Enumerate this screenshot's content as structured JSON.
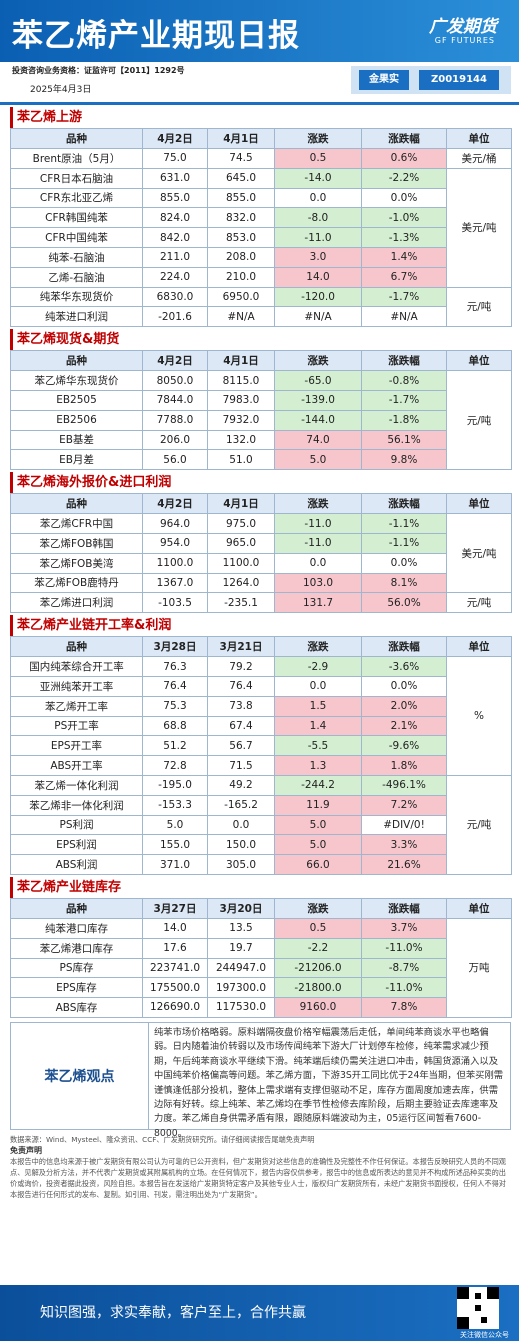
{
  "header": {
    "title": "苯乙烯产业期现日报",
    "logo": "广发期货",
    "logo_en": "GF FUTURES",
    "license": "投资咨询业务资格：证监许可【2011】1292号",
    "date": "2025年4月3日",
    "analyst": "金果实",
    "analyst_id": "Z0019144"
  },
  "sections": [
    {
      "title": "苯乙烯上游",
      "headers": [
        "品种",
        "4月2日",
        "4月1日",
        "涨跌",
        "涨跌幅",
        "单位"
      ],
      "groups": [
        {
          "unit": "美元/桶",
          "rows": [
            [
              "Brent原油（5月）",
              "75.0",
              "74.5",
              "0.5",
              "0.6%"
            ]
          ]
        },
        {
          "unit": "美元/吨",
          "rows": [
            [
              "CFR日本石脑油",
              "631.0",
              "645.0",
              "-14.0",
              "-2.2%"
            ],
            [
              "CFR东北亚乙烯",
              "855.0",
              "855.0",
              "0.0",
              "0.0%"
            ],
            [
              "CFR韩国纯苯",
              "824.0",
              "832.0",
              "-8.0",
              "-1.0%"
            ],
            [
              "CFR中国纯苯",
              "842.0",
              "853.0",
              "-11.0",
              "-1.3%"
            ],
            [
              "纯苯-石脑油",
              "211.0",
              "208.0",
              "3.0",
              "1.4%"
            ],
            [
              "乙烯-石脑油",
              "224.0",
              "210.0",
              "14.0",
              "6.7%"
            ]
          ]
        },
        {
          "unit": "元/吨",
          "rows": [
            [
              "纯苯华东现货价",
              "6830.0",
              "6950.0",
              "-120.0",
              "-1.7%"
            ],
            [
              "纯苯进口利润",
              "-201.6",
              "#N/A",
              "#N/A",
              "#N/A"
            ]
          ]
        }
      ]
    },
    {
      "title": "苯乙烯现货&期货",
      "headers": [
        "品种",
        "4月2日",
        "4月1日",
        "涨跌",
        "涨跌幅",
        "单位"
      ],
      "groups": [
        {
          "unit": "元/吨",
          "rows": [
            [
              "苯乙烯华东现货价",
              "8050.0",
              "8115.0",
              "-65.0",
              "-0.8%"
            ],
            [
              "EB2505",
              "7844.0",
              "7983.0",
              "-139.0",
              "-1.7%"
            ],
            [
              "EB2506",
              "7788.0",
              "7932.0",
              "-144.0",
              "-1.8%"
            ],
            [
              "EB基差",
              "206.0",
              "132.0",
              "74.0",
              "56.1%"
            ],
            [
              "EB月差",
              "56.0",
              "51.0",
              "5.0",
              "9.8%"
            ]
          ]
        }
      ]
    },
    {
      "title": "苯乙烯海外报价&进口利润",
      "headers": [
        "品种",
        "4月2日",
        "4月1日",
        "涨跌",
        "涨跌幅",
        "单位"
      ],
      "groups": [
        {
          "unit": "美元/吨",
          "rows": [
            [
              "苯乙烯CFR中国",
              "964.0",
              "975.0",
              "-11.0",
              "-1.1%"
            ],
            [
              "苯乙烯FOB韩国",
              "954.0",
              "965.0",
              "-11.0",
              "-1.1%"
            ],
            [
              "苯乙烯FOB美湾",
              "1100.0",
              "1100.0",
              "0.0",
              "0.0%"
            ],
            [
              "苯乙烯FOB鹿特丹",
              "1367.0",
              "1264.0",
              "103.0",
              "8.1%"
            ]
          ]
        },
        {
          "unit": "元/吨",
          "rows": [
            [
              "苯乙烯进口利润",
              "-103.5",
              "-235.1",
              "131.7",
              "56.0%"
            ]
          ]
        }
      ]
    },
    {
      "title": "苯乙烯产业链开工率&利润",
      "headers": [
        "品种",
        "3月28日",
        "3月21日",
        "涨跌",
        "涨跌幅",
        "单位"
      ],
      "groups": [
        {
          "unit": "%",
          "rows": [
            [
              "国内纯苯综合开工率",
              "76.3",
              "79.2",
              "-2.9",
              "-3.6%"
            ],
            [
              "亚洲纯苯开工率",
              "76.4",
              "76.4",
              "0.0",
              "0.0%"
            ],
            [
              "苯乙烯开工率",
              "75.3",
              "73.8",
              "1.5",
              "2.0%"
            ],
            [
              "PS开工率",
              "68.8",
              "67.4",
              "1.4",
              "2.1%"
            ],
            [
              "EPS开工率",
              "51.2",
              "56.7",
              "-5.5",
              "-9.6%"
            ],
            [
              "ABS开工率",
              "72.8",
              "71.5",
              "1.3",
              "1.8%"
            ]
          ]
        },
        {
          "unit": "元/吨",
          "rows": [
            [
              "苯乙烯一体化利润",
              "-195.0",
              "49.2",
              "-244.2",
              "-496.1%"
            ],
            [
              "苯乙烯非一体化利润",
              "-153.3",
              "-165.2",
              "11.9",
              "7.2%"
            ],
            [
              "PS利润",
              "5.0",
              "0.0",
              "5.0",
              "#DIV/0!"
            ],
            [
              "EPS利润",
              "155.0",
              "150.0",
              "5.0",
              "3.3%"
            ],
            [
              "ABS利润",
              "371.0",
              "305.0",
              "66.0",
              "21.6%"
            ]
          ]
        }
      ]
    },
    {
      "title": "苯乙烯产业链库存",
      "headers": [
        "品种",
        "3月27日",
        "3月20日",
        "涨跌",
        "涨跌幅",
        "单位"
      ],
      "groups": [
        {
          "unit": "万吨",
          "rows": [
            [
              "纯苯港口库存",
              "14.0",
              "13.5",
              "0.5",
              "3.7%"
            ],
            [
              "苯乙烯港口库存",
              "17.6",
              "19.7",
              "-2.2",
              "-11.0%"
            ],
            [
              "PS库存",
              "223741.0",
              "244947.0",
              "-21206.0",
              "-8.7%"
            ],
            [
              "EPS库存",
              "175500.0",
              "197300.0",
              "-21800.0",
              "-11.0%"
            ],
            [
              "ABS库存",
              "126690.0",
              "117530.0",
              "9160.0",
              "7.8%"
            ]
          ]
        }
      ]
    }
  ],
  "viewpoint": {
    "label": "苯乙烯观点",
    "text": "纯苯市场价格略弱。原料端隔夜盘价格窄幅震荡后走低，单间纯苯商谈水平也略偏弱。日内随着油价转弱以及市场传闻纯苯下游大厂计划停车检修，纯苯需求减少预期，午后纯苯商谈水平继续下滑。纯苯端后续仍需关注进口冲击，韩国货源涌入以及中国纯苯价格偏高等问题。苯乙烯方面，下游3S开工同比优于24年当期，但苯买刚需谨慎逢低部分投机，整体上需求端有支撑但驱动不足，库存方面周度加速去库，供需边际有好转。综上纯苯、苯乙烯均在季节性检修去库阶段，后期主要验证去库速率及力度。苯乙烯自身供需矛盾有限，跟随原料端波动为主，05运行区间暂看7600-8000。"
  },
  "footer": {
    "source": "数据来源：Wind、Mysteel、隆众资讯、CCF、广发期货研究所。请仔细阅读报告尾端免责声明",
    "disclaimer_title": "免责声明",
    "disclaimer": "本报告中的信息均来源于被广发期货有限公司认为可靠的已公开资料，但广发期货对这些信息的准确性及完整性不作任何保证。本报告反映研究人员的不同观点、见解及分析方法，并不代表广发期货或其附属机构的立场。在任何情况下，报告内容仅供参考，报告中的信息或所表达的意见并不构成所述品种买卖的出价或询价，投资者据此投资，风险自担。本报告旨在发送给广发期货特定客户及其他专业人士，版权归广发期货所有，未经广发期货书面授权，任何人不得对本报告进行任何形式的发布、复制。如引用、刊发，需注明出处为“广发期货”。",
    "slogan": "知识图强，求实奉献，客户至上，合作共赢",
    "qr_caption": "关注微信公众号"
  }
}
